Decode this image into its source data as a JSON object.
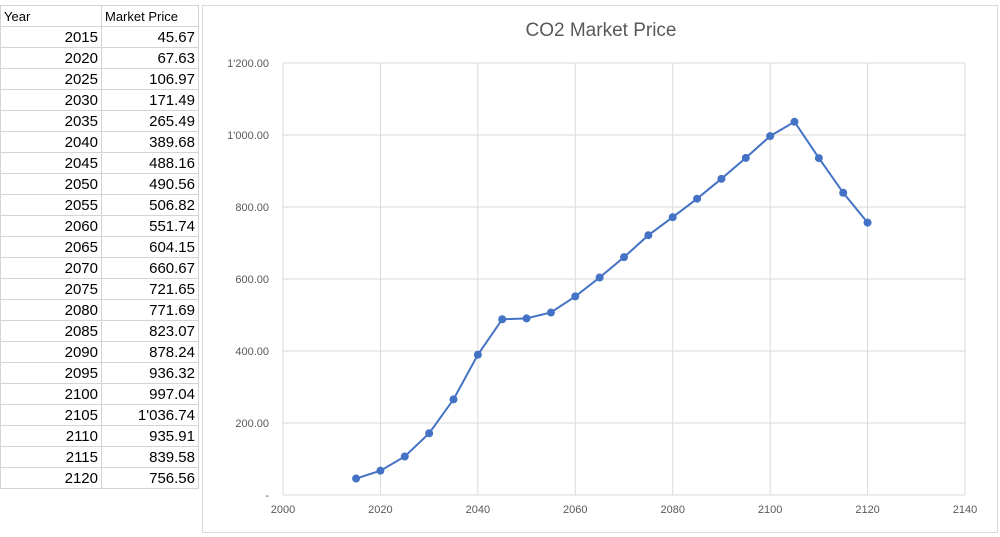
{
  "sheet": {
    "headers": {
      "year": "Year",
      "price": "Market Price"
    },
    "rows": [
      {
        "year": "2015",
        "price": "45.67"
      },
      {
        "year": "2020",
        "price": "67.63"
      },
      {
        "year": "2025",
        "price": "106.97"
      },
      {
        "year": "2030",
        "price": "171.49"
      },
      {
        "year": "2035",
        "price": "265.49"
      },
      {
        "year": "2040",
        "price": "389.68"
      },
      {
        "year": "2045",
        "price": "488.16"
      },
      {
        "year": "2050",
        "price": "490.56"
      },
      {
        "year": "2055",
        "price": "506.82"
      },
      {
        "year": "2060",
        "price": "551.74"
      },
      {
        "year": "2065",
        "price": "604.15"
      },
      {
        "year": "2070",
        "price": "660.67"
      },
      {
        "year": "2075",
        "price": "721.65"
      },
      {
        "year": "2080",
        "price": "771.69"
      },
      {
        "year": "2085",
        "price": "823.07"
      },
      {
        "year": "2090",
        "price": "878.24"
      },
      {
        "year": "2095",
        "price": "936.32"
      },
      {
        "year": "2100",
        "price": "997.04"
      },
      {
        "year": "2105",
        "price": "1'036.74"
      },
      {
        "year": "2110",
        "price": "935.91"
      },
      {
        "year": "2115",
        "price": "839.58"
      },
      {
        "year": "2120",
        "price": "756.56"
      }
    ]
  },
  "chart_data": {
    "type": "scatter",
    "title": "CO2 Market Price",
    "xlabel": "",
    "ylabel": "",
    "xlim": [
      2000,
      2140
    ],
    "ylim": [
      0,
      1200
    ],
    "grid": true,
    "line_color": "#4472c4",
    "x_ticks": [
      "2000",
      "2020",
      "2040",
      "2060",
      "2080",
      "2100",
      "2120",
      "2140"
    ],
    "y_ticks": [
      "-",
      "200.00",
      "400.00",
      "600.00",
      "800.00",
      "1'000.00",
      "1'200.00"
    ],
    "series": [
      {
        "x": [
          2015,
          2020,
          2025,
          2030,
          2035,
          2040,
          2045,
          2050,
          2055,
          2060,
          2065,
          2070,
          2075,
          2080,
          2085,
          2090,
          2095,
          2100,
          2105,
          2110,
          2115,
          2120
        ],
        "y": [
          45.67,
          67.63,
          106.97,
          171.49,
          265.49,
          389.68,
          488.16,
          490.56,
          506.82,
          551.74,
          604.15,
          660.67,
          721.65,
          771.69,
          823.07,
          878.24,
          936.32,
          997.04,
          1036.74,
          935.91,
          839.58,
          756.56
        ]
      }
    ]
  }
}
